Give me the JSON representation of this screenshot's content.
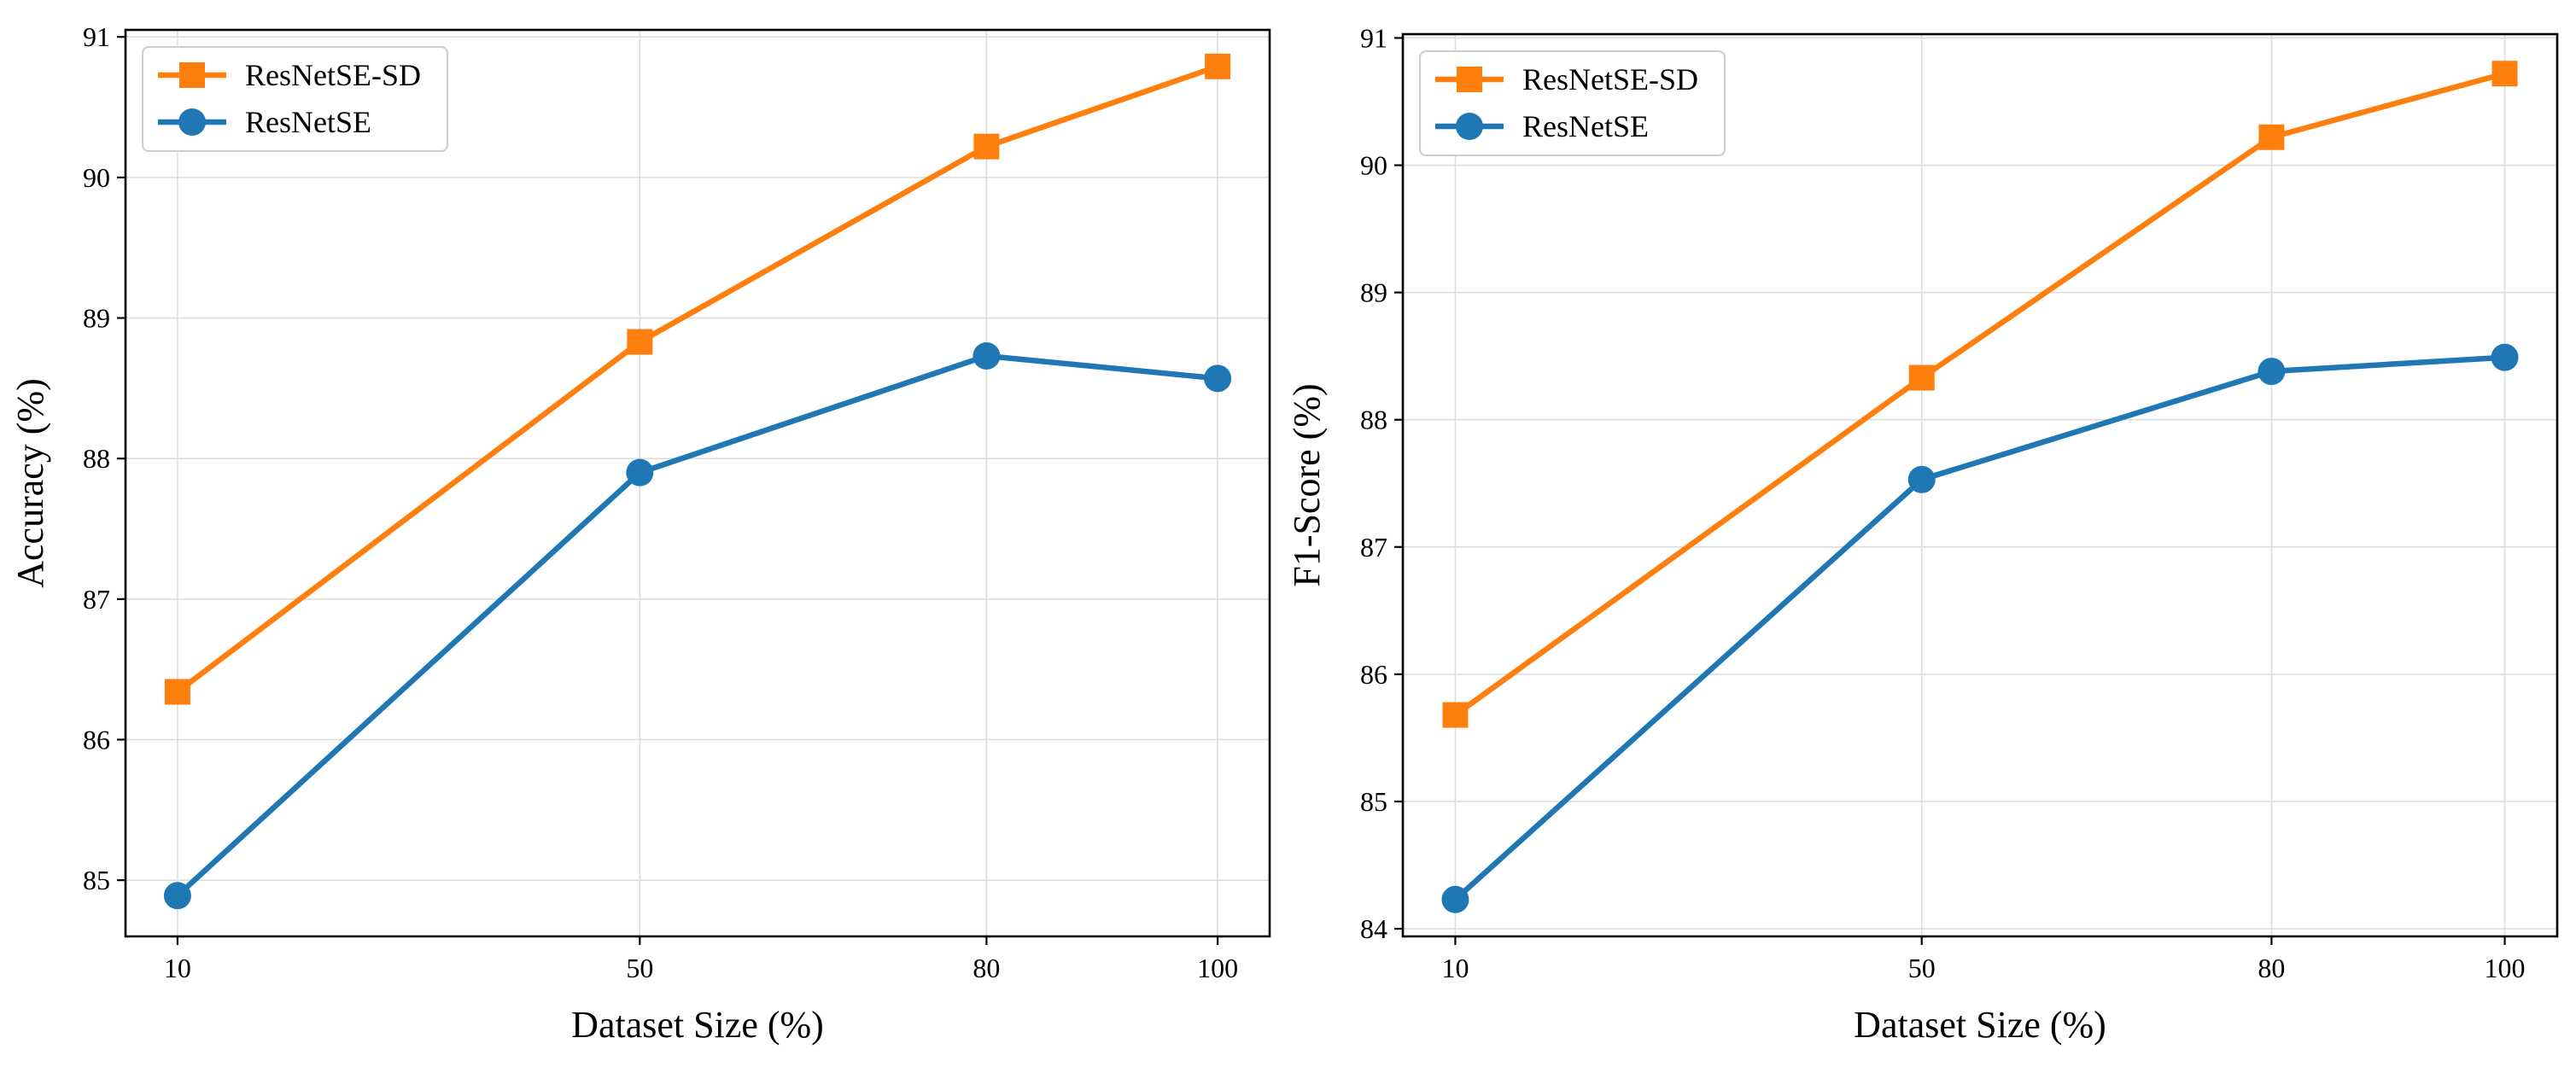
{
  "chart_data": [
    {
      "type": "line",
      "title": "",
      "xlabel": "Dataset Size (%)",
      "ylabel": "Accuracy (%)",
      "x": [
        10,
        50,
        80,
        100
      ],
      "x_tick_labels": [
        "10",
        "50",
        "80",
        "100"
      ],
      "xlim": [
        5.5,
        104.5
      ],
      "ylim": [
        84.6,
        91.05
      ],
      "y_ticks": [
        85,
        86,
        87,
        88,
        89,
        90,
        91
      ],
      "grid": true,
      "legend_position": "top-left",
      "series": [
        {
          "name": "ResNetSE-SD",
          "values": [
            86.34,
            88.83,
            90.22,
            90.79
          ],
          "color": "#ff7f0e",
          "marker": "square"
        },
        {
          "name": "ResNetSE",
          "values": [
            84.89,
            87.9,
            88.73,
            88.57
          ],
          "color": "#1f77b4",
          "marker": "circle"
        }
      ]
    },
    {
      "type": "line",
      "title": "",
      "xlabel": "Dataset Size (%)",
      "ylabel": "F1-Score (%)",
      "x": [
        10,
        50,
        80,
        100
      ],
      "x_tick_labels": [
        "10",
        "50",
        "80",
        "100"
      ],
      "xlim": [
        5.5,
        104.5
      ],
      "ylim": [
        83.94,
        91.03
      ],
      "y_ticks": [
        84,
        85,
        86,
        87,
        88,
        89,
        90,
        91
      ],
      "grid": true,
      "legend_position": "top-left",
      "series": [
        {
          "name": "ResNetSE-SD",
          "values": [
            85.68,
            88.33,
            90.22,
            90.72
          ],
          "color": "#ff7f0e",
          "marker": "square"
        },
        {
          "name": "ResNetSE",
          "values": [
            84.23,
            87.53,
            88.38,
            88.49
          ],
          "color": "#1f77b4",
          "marker": "circle"
        }
      ]
    }
  ]
}
